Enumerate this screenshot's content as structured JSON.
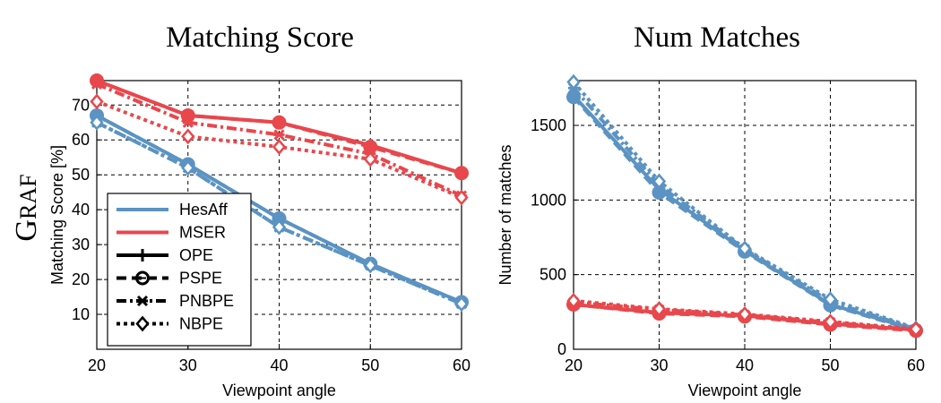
{
  "row_label": "GRAF",
  "chart_data": [
    {
      "type": "line",
      "title": "Matching Score",
      "xlabel": "Viewpoint angle",
      "ylabel": "Matching Score [%]",
      "x": [
        20,
        30,
        40,
        50,
        60
      ],
      "xlim": [
        20,
        60
      ],
      "ylim": [
        0,
        77
      ],
      "xticks": [
        20,
        30,
        40,
        50,
        60
      ],
      "yticks": [
        10,
        20,
        30,
        40,
        50,
        60,
        70
      ],
      "grid": true,
      "legend": "lower-left",
      "colors": {
        "HesAff": "#5b93c2",
        "MSER": "#e8474c"
      },
      "series": [
        {
          "name": "HesAff",
          "method": "OPE",
          "values": [
            67,
            53,
            37.5,
            24.5,
            13.5
          ]
        },
        {
          "name": "HesAff",
          "method": "PSPE",
          "values": [
            67,
            53,
            37.5,
            24.5,
            13.5
          ]
        },
        {
          "name": "HesAff",
          "method": "PNBPE",
          "values": [
            65,
            52,
            35,
            24,
            13
          ]
        },
        {
          "name": "HesAff",
          "method": "NBPE",
          "values": [
            65,
            52,
            35,
            24,
            13
          ]
        },
        {
          "name": "MSER",
          "method": "OPE",
          "values": [
            77,
            67,
            65,
            58.5,
            50.5
          ]
        },
        {
          "name": "MSER",
          "method": "PSPE",
          "values": [
            77,
            67,
            65,
            58,
            50.5
          ]
        },
        {
          "name": "MSER",
          "method": "PNBPE",
          "values": [
            76,
            65,
            61.5,
            56,
            44
          ]
        },
        {
          "name": "MSER",
          "method": "NBPE",
          "values": [
            71,
            61,
            58,
            54.5,
            43.5
          ]
        }
      ]
    },
    {
      "type": "line",
      "title": "Num Matches",
      "xlabel": "Viewpoint angle",
      "ylabel": "Number of matches",
      "x": [
        20,
        30,
        40,
        50,
        60
      ],
      "xlim": [
        20,
        60
      ],
      "ylim": [
        0,
        1800
      ],
      "xticks": [
        20,
        30,
        40,
        50,
        60
      ],
      "yticks": [
        0,
        500,
        1000,
        1500
      ],
      "grid": true,
      "colors": {
        "HesAff": "#5b93c2",
        "MSER": "#e8474c"
      },
      "series": [
        {
          "name": "HesAff",
          "method": "OPE",
          "values": [
            1700,
            1070,
            660,
            300,
            130
          ]
        },
        {
          "name": "HesAff",
          "method": "PSPE",
          "values": [
            1690,
            1050,
            655,
            295,
            125
          ]
        },
        {
          "name": "HesAff",
          "method": "PNBPE",
          "values": [
            1750,
            1100,
            670,
            320,
            135
          ]
        },
        {
          "name": "HesAff",
          "method": "NBPE",
          "values": [
            1790,
            1125,
            675,
            335,
            140
          ]
        },
        {
          "name": "MSER",
          "method": "OPE",
          "values": [
            300,
            245,
            225,
            170,
            130
          ]
        },
        {
          "name": "MSER",
          "method": "PSPE",
          "values": [
            300,
            240,
            220,
            165,
            125
          ]
        },
        {
          "name": "MSER",
          "method": "PNBPE",
          "values": [
            315,
            265,
            230,
            180,
            130
          ]
        },
        {
          "name": "MSER",
          "method": "NBPE",
          "values": [
            325,
            270,
            235,
            185,
            135
          ]
        }
      ]
    }
  ],
  "legend": {
    "series": [
      {
        "label": "HesAff",
        "color": "#5b93c2"
      },
      {
        "label": "MSER",
        "color": "#e8474c"
      }
    ],
    "methods": [
      {
        "label": "OPE",
        "dash": "solid",
        "marker": "plus"
      },
      {
        "label": "PSPE",
        "dash": "dashed",
        "marker": "circle"
      },
      {
        "label": "PNBPE",
        "dash": "dashdot",
        "marker": "star"
      },
      {
        "label": "NBPE",
        "dash": "dotted",
        "marker": "diamond"
      }
    ]
  }
}
